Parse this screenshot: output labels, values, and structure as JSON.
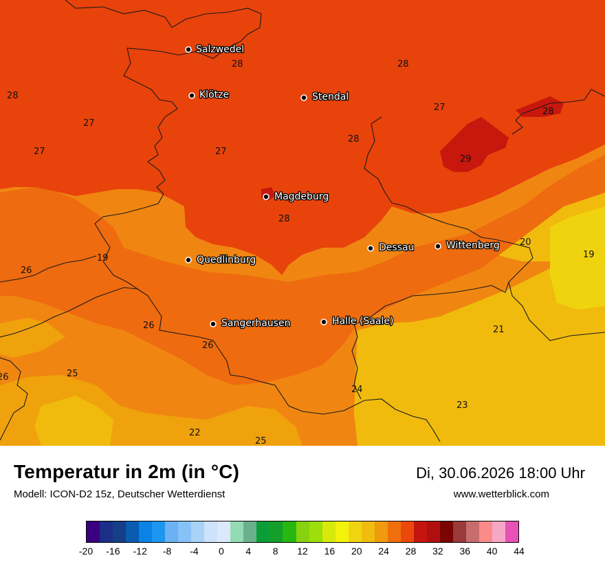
{
  "map": {
    "cities": [
      {
        "name": "Salzwedel"
      },
      {
        "name": "Klötze"
      },
      {
        "name": "Stendal"
      },
      {
        "name": "Magdeburg"
      },
      {
        "name": "Dessau"
      },
      {
        "name": "Wittenberg"
      },
      {
        "name": "Quedlinburg"
      },
      {
        "name": "Sangerhausen"
      },
      {
        "name": "Halle (Saale)"
      }
    ],
    "temperature_labels": [
      "28",
      "28",
      "28",
      "27",
      "27",
      "27",
      "28",
      "27",
      "28",
      "29",
      "28",
      "26",
      "19",
      "20",
      "19",
      "26",
      "26",
      "21",
      "25",
      "26",
      "24",
      "23",
      "22",
      "25"
    ]
  },
  "footer": {
    "title": "Temperatur in 2m (in °C)",
    "model": "Modell: ICON-D2 15z, Deutscher Wetterdienst",
    "datetime": "Di, 30.06.2026 18:00 Uhr",
    "website": "www.wetterblick.com"
  },
  "colorscale": {
    "unit": "°C",
    "tick_labels": [
      "-20",
      "-16",
      "-12",
      "-8",
      "-4",
      "0",
      "4",
      "8",
      "12",
      "16",
      "20",
      "24",
      "28",
      "32",
      "36",
      "40",
      "44"
    ],
    "colors": [
      "#3a0080",
      "#1b2f88",
      "#153f86",
      "#0a5cb0",
      "#0b82e6",
      "#1d96f0",
      "#6cb1f2",
      "#86c2f6",
      "#a8d3f7",
      "#cde2fb",
      "#dbe9fb",
      "#93dcb3",
      "#6bb08c",
      "#0b9e38",
      "#139f2a",
      "#27b710",
      "#86d20f",
      "#9ede0c",
      "#d7e80b",
      "#f2f30a",
      "#f0d410",
      "#f0bc0d",
      "#f09a0d",
      "#ef6f0d",
      "#ea490b",
      "#c5150f",
      "#b00f0f",
      "#7c0303",
      "#9a3a3a",
      "#c76d6d",
      "#fb8b8b",
      "#f7a7c6",
      "#e652b5"
    ]
  },
  "map_colors": {
    "t18_19": "#efd30f",
    "t20_21": "#f0bb0d",
    "t22_23": "#f0a20d",
    "t24_25": "#f08611",
    "t26_27": "#ef6b0f",
    "t28": "#e8430b",
    "t29": "#c8170d",
    "border": "#1a1a1a"
  }
}
